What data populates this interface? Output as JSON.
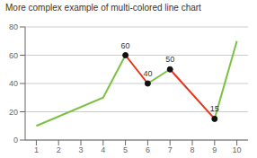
{
  "chart_data": {
    "type": "line",
    "title": "More complex example of multi-colored line chart",
    "x": [
      1,
      4,
      5,
      6,
      7,
      9,
      10
    ],
    "series": [
      {
        "color": "#7bc142",
        "values": [
          10,
          30,
          60,
          null,
          null,
          null,
          null
        ]
      },
      {
        "color": "#e8321a",
        "values": [
          null,
          null,
          60,
          40,
          null,
          null,
          null
        ]
      },
      {
        "color": "#7bc142",
        "values": [
          null,
          null,
          null,
          40,
          50,
          null,
          null
        ]
      },
      {
        "color": "#e8321a",
        "values": [
          null,
          null,
          null,
          null,
          50,
          15,
          null
        ]
      },
      {
        "color": "#7bc142",
        "values": [
          null,
          null,
          null,
          null,
          null,
          15,
          70
        ]
      }
    ],
    "annotations": [
      {
        "x": 5,
        "y": 60,
        "text": "60",
        "color": "#111111"
      },
      {
        "x": 6,
        "y": 40,
        "text": "40",
        "color": "#111111"
      },
      {
        "x": 7,
        "y": 50,
        "text": "50",
        "color": "#111111"
      },
      {
        "x": 9,
        "y": 15,
        "text": "15",
        "color": "#111111"
      }
    ],
    "xlim": [
      0.5,
      10.5
    ],
    "ylim": [
      0,
      80
    ],
    "xticks": [
      1,
      2,
      3,
      4,
      5,
      6,
      7,
      8,
      9,
      10
    ],
    "yticks": [
      0,
      20,
      40,
      60,
      80
    ],
    "grid": true
  }
}
